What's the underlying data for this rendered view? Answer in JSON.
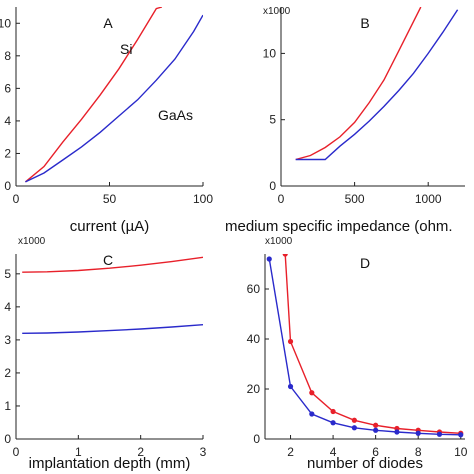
{
  "colors": {
    "si": "#e8202a",
    "gaas": "#2a2acb",
    "axis": "#222222"
  },
  "chart_data": [
    {
      "type": "line",
      "panel_letter": "A",
      "xlabel": "current (µA)",
      "ylabel": "",
      "y_multiplier": "",
      "xlim": [
        0,
        100
      ],
      "ylim": [
        0,
        11
      ],
      "xticks": [
        0,
        50,
        100
      ],
      "yticks": [
        0,
        2,
        4,
        6,
        8,
        10
      ],
      "grid": false,
      "series": [
        {
          "name": "Si",
          "color": "#e8202a",
          "markers": false,
          "x": [
            5,
            15,
            25,
            35,
            45,
            55,
            65,
            75,
            78
          ],
          "y": [
            0.25,
            1.2,
            2.7,
            4.1,
            5.6,
            7.2,
            9.0,
            10.9,
            11.0
          ]
        },
        {
          "name": "GaAs",
          "color": "#2a2acb",
          "markers": false,
          "x": [
            5,
            15,
            25,
            35,
            45,
            55,
            65,
            75,
            85,
            95,
            100
          ],
          "y": [
            0.25,
            0.8,
            1.6,
            2.4,
            3.3,
            4.3,
            5.3,
            6.5,
            7.8,
            9.5,
            10.5
          ]
        }
      ]
    },
    {
      "type": "line",
      "panel_letter": "B",
      "xlabel": "medium specific impedance (ohm.",
      "ylabel": "",
      "y_multiplier": "x1000",
      "xlim": [
        0,
        1250
      ],
      "ylim": [
        0,
        13.5
      ],
      "xticks": [
        0,
        500,
        1000
      ],
      "yticks": [
        0,
        5,
        10
      ],
      "grid": false,
      "series": [
        {
          "name": "",
          "color": "#e8202a",
          "markers": false,
          "x": [
            100,
            200,
            300,
            400,
            500,
            600,
            700,
            800,
            900,
            950
          ],
          "y": [
            2.0,
            2.3,
            2.9,
            3.7,
            4.8,
            6.3,
            8.0,
            10.2,
            12.4,
            13.5
          ]
        },
        {
          "name": "",
          "color": "#2a2acb",
          "markers": false,
          "x": [
            100,
            300,
            400,
            500,
            600,
            700,
            800,
            900,
            1000,
            1100,
            1200
          ],
          "y": [
            2.0,
            2.0,
            3.0,
            3.9,
            4.9,
            6.0,
            7.2,
            8.5,
            10.0,
            11.6,
            13.3
          ]
        }
      ]
    },
    {
      "type": "line",
      "panel_letter": "C",
      "xlabel": "implantation depth (mm)",
      "ylabel": "",
      "y_multiplier": "x1000",
      "xlim": [
        0,
        3
      ],
      "ylim": [
        0,
        5.6
      ],
      "xticks": [
        0,
        1,
        2,
        3
      ],
      "yticks": [
        0,
        1,
        2,
        3,
        4,
        5
      ],
      "grid": false,
      "series": [
        {
          "name": "",
          "color": "#e8202a",
          "markers": false,
          "x": [
            0.1,
            0.5,
            1.0,
            1.5,
            2.0,
            2.5,
            3.0
          ],
          "y": [
            5.05,
            5.06,
            5.1,
            5.17,
            5.26,
            5.37,
            5.5
          ]
        },
        {
          "name": "",
          "color": "#2a2acb",
          "markers": false,
          "x": [
            0.1,
            0.5,
            1.0,
            1.5,
            2.0,
            2.5,
            3.0
          ],
          "y": [
            3.2,
            3.21,
            3.24,
            3.28,
            3.33,
            3.39,
            3.46
          ]
        }
      ]
    },
    {
      "type": "line",
      "panel_letter": "D",
      "xlabel": "number of diodes",
      "ylabel": "",
      "y_multiplier": "x1000",
      "xlim": [
        0.8,
        10.2
      ],
      "ylim": [
        0,
        74
      ],
      "xticks": [
        2,
        4,
        6,
        8,
        10
      ],
      "yticks": [
        0,
        20,
        40,
        60
      ],
      "grid": false,
      "series": [
        {
          "name": "",
          "color": "#e8202a",
          "markers": true,
          "x": [
            1.75,
            2,
            3,
            4,
            5,
            6,
            7,
            8,
            9,
            10
          ],
          "y": [
            74,
            39,
            18.5,
            11,
            7.5,
            5.5,
            4.2,
            3.5,
            2.8,
            2.3
          ]
        },
        {
          "name": "",
          "color": "#2a2acb",
          "markers": true,
          "x": [
            1,
            2,
            3,
            4,
            5,
            6,
            7,
            8,
            9,
            10
          ],
          "y": [
            72,
            21,
            10,
            6.5,
            4.5,
            3.5,
            2.8,
            2.3,
            1.9,
            1.7
          ]
        }
      ]
    }
  ]
}
